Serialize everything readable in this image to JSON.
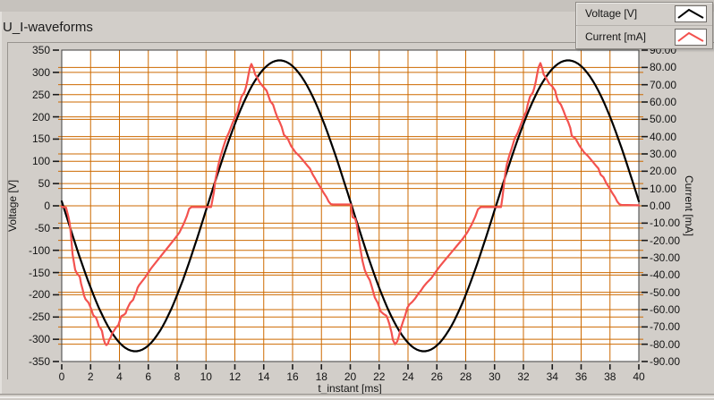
{
  "window": {
    "title": "U_I-waveforms"
  },
  "legend": {
    "items": [
      {
        "label": "Voltage [V]",
        "color": "#000000"
      },
      {
        "label": "Current [mA]",
        "color": "#f3524f"
      }
    ]
  },
  "colors": {
    "background": "#d2cec9",
    "plot_background": "#ffffff",
    "grid": "#cd6a00",
    "frame": "#3f3f3f",
    "tick": "#1a1a1a",
    "voltage_series": "#000000",
    "current_series": "#f3524f"
  },
  "axes": {
    "x": {
      "title": "t_instant [ms]",
      "min": 0,
      "max": 40,
      "tick_step": 2,
      "tick_labels": [
        "0",
        "2",
        "4",
        "6",
        "8",
        "10",
        "12",
        "14",
        "16",
        "18",
        "20",
        "22",
        "24",
        "26",
        "28",
        "30",
        "32",
        "34",
        "36",
        "38",
        "40"
      ]
    },
    "y_left": {
      "title": "Voltage [V]",
      "min": -350,
      "max": 350,
      "tick_step": 50,
      "tick_labels": [
        "350",
        "300",
        "250",
        "200",
        "150",
        "100",
        "50",
        "0",
        "-50",
        "-100",
        "-150",
        "-200",
        "-250",
        "-300",
        "-350"
      ]
    },
    "y_right": {
      "title": "Current [mA]",
      "min": -90,
      "max": 90,
      "tick_step": 10,
      "tick_labels": [
        "90.00",
        "80.00",
        "70.00",
        "60.00",
        "50.00",
        "40.00",
        "30.00",
        "20.00",
        "10.00",
        "0.00",
        "-10.00",
        "-20.00",
        "-30.00",
        "-40.00",
        "-50.00",
        "-60.00",
        "-70.00",
        "-80.00",
        "-90.00"
      ]
    }
  },
  "chart_data": {
    "type": "line",
    "title": "U_I-waveforms",
    "xlabel": "t_instant [ms]",
    "ylabel_left": "Voltage [V]",
    "ylabel_right": "Current [mA]",
    "xlim": [
      0,
      40
    ],
    "ylim_left": [
      -350,
      350
    ],
    "ylim_right": [
      -90,
      90
    ],
    "grid": "both-axes, orange major gridlines",
    "legend_position": "top-right",
    "series": [
      {
        "name": "Voltage [V]",
        "axis": "left",
        "units": "V",
        "color": "#000000",
        "model": "sine",
        "amplitude": 327,
        "period_ms": 20,
        "zero_crossing_ms": 0.1,
        "polarity": "negative-half-first",
        "description": "v(t) = -327*sin(2*pi*(t-0.1)/20); minima near t=5,25 at -327 V; maxima near t=15,35 at +327 V"
      },
      {
        "name": "Current [mA]",
        "axis": "right",
        "units": "mA",
        "color": "#f3524f",
        "points_t_mA": [
          [
            0,
            -0.5
          ],
          [
            0.3,
            -1
          ],
          [
            0.45,
            -6
          ],
          [
            0.55,
            -10
          ],
          [
            0.65,
            -18
          ],
          [
            0.75,
            -28
          ],
          [
            0.93,
            -37
          ],
          [
            1.05,
            -39
          ],
          [
            1.25,
            -41
          ],
          [
            1.34,
            -45
          ],
          [
            1.44,
            -48
          ],
          [
            1.55,
            -52
          ],
          [
            1.65,
            -54
          ],
          [
            1.86,
            -56
          ],
          [
            1.96,
            -58
          ],
          [
            2.06,
            -60
          ],
          [
            2.17,
            -63
          ],
          [
            2.27,
            -64
          ],
          [
            2.37,
            -64.5
          ],
          [
            2.48,
            -67
          ],
          [
            2.58,
            -69.8
          ],
          [
            2.68,
            -70.5
          ],
          [
            2.79,
            -72.4
          ],
          [
            2.89,
            -76.7
          ],
          [
            2.99,
            -79.3
          ],
          [
            3.09,
            -80.5
          ],
          [
            3.2,
            -79.7
          ],
          [
            3.3,
            -77.2
          ],
          [
            3.4,
            -76
          ],
          [
            3.51,
            -73.3
          ],
          [
            3.61,
            -72.4
          ],
          [
            3.71,
            -71
          ],
          [
            3.82,
            -69.8
          ],
          [
            3.92,
            -69
          ],
          [
            4.02,
            -66.4
          ],
          [
            4.13,
            -63.8
          ],
          [
            4.33,
            -62.9
          ],
          [
            4.43,
            -62.1
          ],
          [
            4.54,
            -59.5
          ],
          [
            4.64,
            -57.8
          ],
          [
            4.75,
            -56
          ],
          [
            4.95,
            -54.3
          ],
          [
            5.06,
            -51.7
          ],
          [
            5.16,
            -50
          ],
          [
            5.26,
            -47.4
          ],
          [
            5.37,
            -45.7
          ],
          [
            5.78,
            -41.4
          ],
          [
            6.19,
            -36.2
          ],
          [
            6.6,
            -31.9
          ],
          [
            7.01,
            -27.6
          ],
          [
            7.43,
            -23.3
          ],
          [
            7.84,
            -19
          ],
          [
            8.15,
            -15.5
          ],
          [
            8.46,
            -10.3
          ],
          [
            8.67,
            -6
          ],
          [
            8.83,
            -1.7
          ],
          [
            9.0,
            -0.7
          ],
          [
            10.35,
            -0.7
          ],
          [
            10.45,
            3.5
          ],
          [
            10.55,
            8
          ],
          [
            10.65,
            15
          ],
          [
            10.85,
            23.5
          ],
          [
            11.0,
            28.5
          ],
          [
            11.2,
            34
          ],
          [
            11.4,
            39
          ],
          [
            11.6,
            42.5
          ],
          [
            11.8,
            47
          ],
          [
            12.0,
            51
          ],
          [
            12.2,
            54.5
          ],
          [
            12.3,
            58.5
          ],
          [
            12.45,
            63
          ],
          [
            12.65,
            65.5
          ],
          [
            12.75,
            68
          ],
          [
            12.85,
            71.5
          ],
          [
            12.95,
            76
          ],
          [
            13.05,
            80
          ],
          [
            13.15,
            82
          ],
          [
            13.3,
            79
          ],
          [
            13.4,
            76
          ],
          [
            13.55,
            74
          ],
          [
            13.75,
            71
          ],
          [
            13.95,
            69
          ],
          [
            14.2,
            66.5
          ],
          [
            14.35,
            63
          ],
          [
            14.45,
            60.5
          ],
          [
            14.65,
            58.5
          ],
          [
            14.8,
            54.5
          ],
          [
            14.95,
            51
          ],
          [
            15.1,
            48.5
          ],
          [
            15.25,
            45.5
          ],
          [
            15.4,
            41
          ],
          [
            15.65,
            39
          ],
          [
            15.9,
            34.5
          ],
          [
            16.2,
            31
          ],
          [
            16.5,
            28.5
          ],
          [
            16.75,
            26
          ],
          [
            17.0,
            23.5
          ],
          [
            17.2,
            21.5
          ],
          [
            17.4,
            18
          ],
          [
            17.55,
            16
          ],
          [
            17.75,
            13
          ],
          [
            17.95,
            10.5
          ],
          [
            18.15,
            7.5
          ],
          [
            18.35,
            5
          ],
          [
            18.5,
            2.5
          ],
          [
            18.65,
            1
          ],
          [
            18.8,
            0.8
          ],
          [
            20.05,
            0.8
          ],
          [
            20.15,
            -6.5
          ],
          [
            20.35,
            -7.5
          ],
          [
            20.45,
            -11
          ],
          [
            20.55,
            -17
          ],
          [
            20.7,
            -25
          ],
          [
            20.85,
            -32
          ],
          [
            21.0,
            -37
          ],
          [
            21.15,
            -40
          ],
          [
            21.35,
            -43
          ],
          [
            21.5,
            -47
          ],
          [
            21.7,
            -53
          ],
          [
            21.9,
            -56
          ],
          [
            22.1,
            -61
          ],
          [
            22.3,
            -62.5
          ],
          [
            22.5,
            -63.5
          ],
          [
            22.6,
            -65.5
          ],
          [
            22.7,
            -68
          ],
          [
            22.85,
            -73
          ],
          [
            22.95,
            -77.5
          ],
          [
            23.1,
            -80
          ],
          [
            23.25,
            -78.5
          ],
          [
            23.35,
            -76
          ],
          [
            23.5,
            -71
          ],
          [
            23.65,
            -67
          ],
          [
            23.8,
            -63.5
          ],
          [
            23.95,
            -59
          ],
          [
            24.1,
            -57
          ],
          [
            24.3,
            -55.5
          ],
          [
            24.5,
            -53.5
          ],
          [
            24.7,
            -51
          ],
          [
            24.9,
            -49
          ],
          [
            25.1,
            -46.5
          ],
          [
            25.3,
            -44.5
          ],
          [
            25.6,
            -42
          ],
          [
            25.9,
            -38.5
          ],
          [
            26.2,
            -35
          ],
          [
            26.6,
            -31
          ],
          [
            27.0,
            -27
          ],
          [
            27.4,
            -23
          ],
          [
            27.8,
            -19
          ],
          [
            28.1,
            -15.5
          ],
          [
            28.4,
            -11
          ],
          [
            28.65,
            -6.5
          ],
          [
            28.85,
            -2
          ],
          [
            29.05,
            -0.7
          ],
          [
            30.45,
            -0.7
          ],
          [
            30.55,
            5
          ],
          [
            30.65,
            12
          ],
          [
            30.75,
            19
          ],
          [
            30.85,
            24
          ],
          [
            31.0,
            28.5
          ],
          [
            31.2,
            33.5
          ],
          [
            31.4,
            39
          ],
          [
            31.6,
            42
          ],
          [
            31.8,
            46.5
          ],
          [
            32.0,
            51
          ],
          [
            32.2,
            54.5
          ],
          [
            32.3,
            58.5
          ],
          [
            32.45,
            63
          ],
          [
            32.65,
            65.5
          ],
          [
            32.75,
            68
          ],
          [
            32.85,
            71.5
          ],
          [
            32.95,
            76
          ],
          [
            33.05,
            80
          ],
          [
            33.18,
            82.5
          ],
          [
            33.3,
            79.5
          ],
          [
            33.4,
            76
          ],
          [
            33.6,
            73.5
          ],
          [
            33.8,
            70.5
          ],
          [
            34.0,
            69
          ],
          [
            34.2,
            66.5
          ],
          [
            34.3,
            63
          ],
          [
            34.4,
            60.5
          ],
          [
            34.6,
            58.5
          ],
          [
            34.8,
            54.5
          ],
          [
            34.95,
            51
          ],
          [
            35.1,
            48.5
          ],
          [
            35.25,
            45
          ],
          [
            35.35,
            40.5
          ],
          [
            35.6,
            39
          ],
          [
            35.9,
            34.5
          ],
          [
            36.2,
            31
          ],
          [
            36.5,
            28.5
          ],
          [
            36.75,
            26
          ],
          [
            37.0,
            23.5
          ],
          [
            37.2,
            21.5
          ],
          [
            37.35,
            18
          ],
          [
            37.55,
            16.5
          ],
          [
            37.75,
            13
          ],
          [
            37.95,
            10.5
          ],
          [
            38.15,
            7.5
          ],
          [
            38.35,
            5
          ],
          [
            38.5,
            2.5
          ],
          [
            38.65,
            1
          ],
          [
            38.8,
            0.5
          ],
          [
            40,
            0.3
          ]
        ]
      }
    ]
  }
}
